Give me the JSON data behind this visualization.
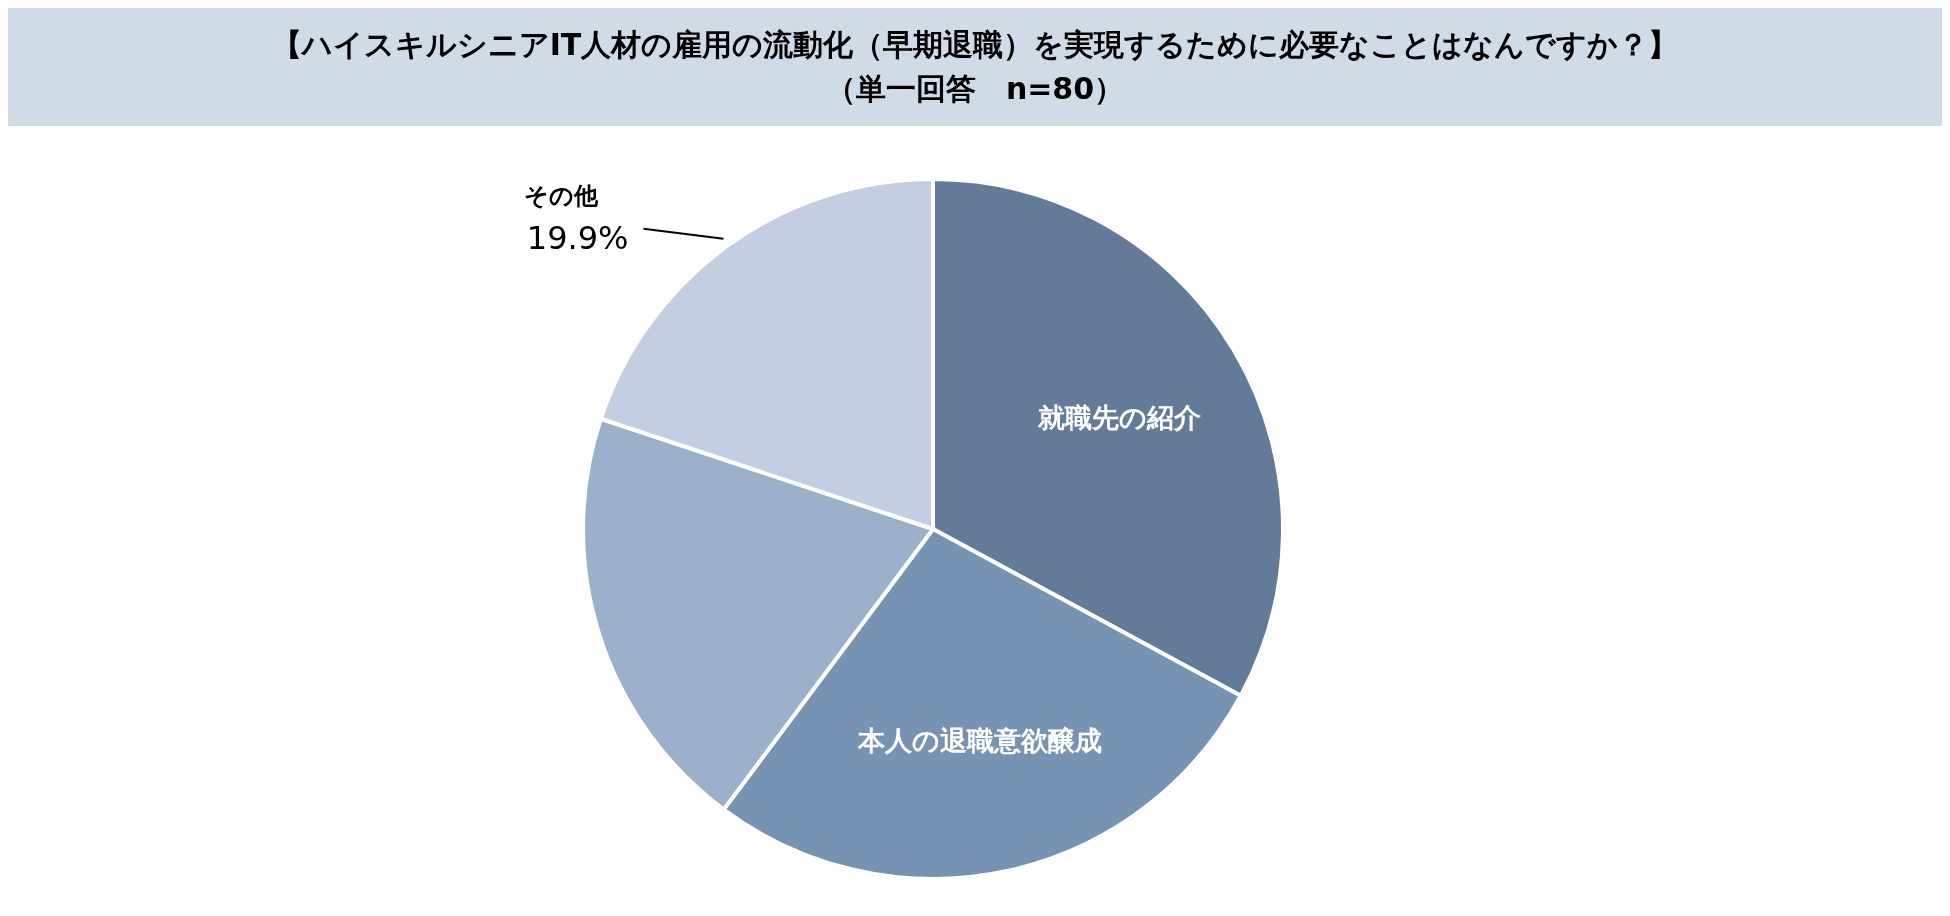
{
  "chart_data": {
    "type": "pie",
    "title": "【ハイスキルシニアIT人材の雇用の流動化（早期退職）を実現するために必要なことはなんですか？】",
    "subtitle": "（単一回答　n=80）",
    "categories": [
      "就職先の紹介",
      "本人の退職意欲醸成",
      null,
      "その他"
    ],
    "values": [
      32.9,
      27.3,
      19.9,
      19.9
    ],
    "colors": [
      "#637a98",
      "#7793b4",
      "#9cb0cc",
      "#c3cfe0"
    ],
    "value_labels": [
      null,
      null,
      null,
      "19.9%"
    ],
    "legend": false
  }
}
